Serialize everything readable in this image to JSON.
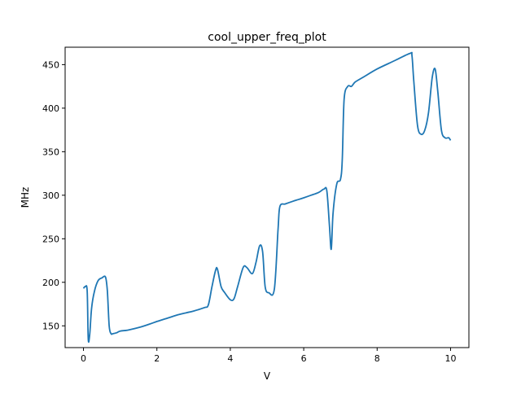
{
  "chart_data": {
    "type": "line",
    "title": "cool_upper_freq_plot",
    "xlabel": "V",
    "ylabel": "MHz",
    "xlim": [
      -0.5,
      10.5
    ],
    "ylim": [
      125,
      470
    ],
    "xticks": [
      0,
      2,
      4,
      6,
      8,
      10
    ],
    "yticks": [
      150,
      200,
      250,
      300,
      350,
      400,
      450
    ],
    "grid": false,
    "series": [
      {
        "color": "#1f77b4",
        "x": [
          0.0,
          0.05,
          0.1,
          0.13,
          0.17,
          0.22,
          0.3,
          0.4,
          0.5,
          0.6,
          0.65,
          0.7,
          0.75,
          0.8,
          0.9,
          1.0,
          1.2,
          1.5,
          1.8,
          2.0,
          2.3,
          2.6,
          2.8,
          3.0,
          3.3,
          3.4,
          3.5,
          3.6,
          3.65,
          3.75,
          3.85,
          4.0,
          4.1,
          4.2,
          4.35,
          4.45,
          4.6,
          4.7,
          4.8,
          4.88,
          4.95,
          5.05,
          5.2,
          5.3,
          5.35,
          5.5,
          5.7,
          5.85,
          6.0,
          6.2,
          6.4,
          6.55,
          6.63,
          6.7,
          6.75,
          6.8,
          6.9,
          7.0,
          7.05,
          7.1,
          7.2,
          7.3,
          7.4,
          7.6,
          8.0,
          8.5,
          8.9,
          8.95,
          9.0,
          9.1,
          9.2,
          9.3,
          9.4,
          9.5,
          9.58,
          9.65,
          9.75,
          9.85,
          9.95,
          10.0
        ],
        "y": [
          193,
          195,
          190,
          135,
          140,
          170,
          190,
          202,
          205,
          206,
          190,
          150,
          141,
          141,
          142,
          144,
          145,
          148,
          152,
          155,
          159,
          163,
          165,
          167,
          171,
          174,
          195,
          214,
          215,
          195,
          188,
          180,
          181,
          195,
          217,
          217,
          210,
          223,
          242,
          235,
          195,
          188,
          192,
          260,
          287,
          290,
          293,
          295,
          297,
          300,
          303,
          307,
          305,
          265,
          238,
          280,
          313,
          318,
          340,
          410,
          425,
          425,
          430,
          435,
          445,
          455,
          463,
          460,
          430,
          380,
          370,
          375,
          395,
          435,
          445,
          420,
          375,
          366,
          366,
          363
        ]
      }
    ]
  }
}
